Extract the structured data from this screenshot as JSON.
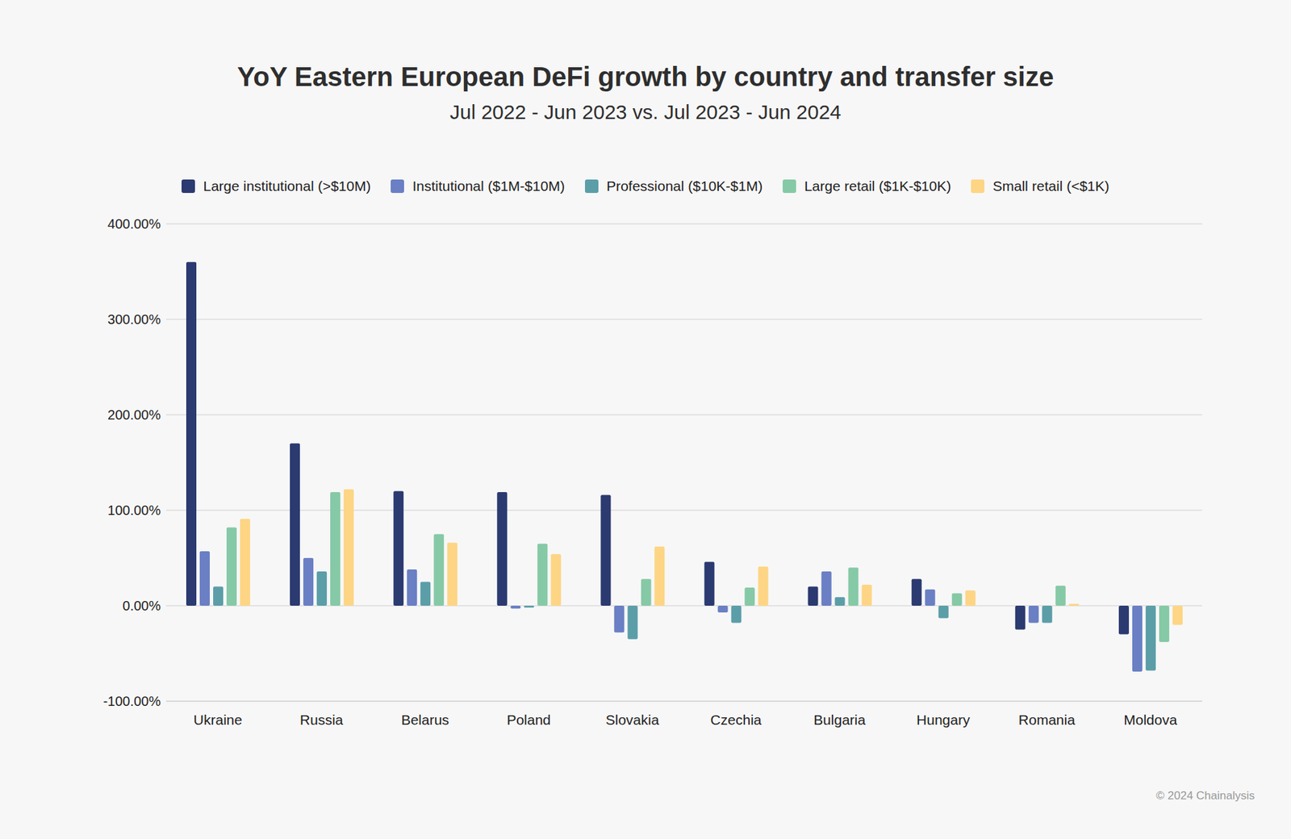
{
  "chart_data": {
    "type": "bar",
    "title": "YoY Eastern European DeFi growth by country and transfer size",
    "subtitle": "Jul 2022 - Jun 2023 vs. Jul 2023 - Jun 2024",
    "source": "© 2024 Chainalysis",
    "categories": [
      "Ukraine",
      "Russia",
      "Belarus",
      "Poland",
      "Slovakia",
      "Czechia",
      "Bulgaria",
      "Hungary",
      "Romania",
      "Moldova"
    ],
    "series": [
      {
        "name": "Large institutional (>$10M)",
        "color": "#2b3a70",
        "values": [
          360,
          170,
          120,
          119,
          116,
          46,
          20,
          28,
          -25,
          -30
        ]
      },
      {
        "name": "Institutional ($1M-$10M)",
        "color": "#6a7fc4",
        "values": [
          57,
          50,
          38,
          -3,
          -28,
          -7,
          36,
          17,
          -18,
          -69
        ]
      },
      {
        "name": "Professional ($10K-$1M)",
        "color": "#5b9ea8",
        "values": [
          20,
          36,
          25,
          -2,
          -35,
          -18,
          9,
          -13,
          -18,
          -68
        ]
      },
      {
        "name": "Large retail ($1K-$10K)",
        "color": "#86c9a6",
        "values": [
          82,
          119,
          75,
          65,
          28,
          19,
          40,
          13,
          21,
          -38
        ]
      },
      {
        "name": "Small retail (<$1K)",
        "color": "#fdd584",
        "values": [
          91,
          122,
          66,
          54,
          62,
          41,
          22,
          16,
          2,
          -20
        ]
      }
    ],
    "ylim": [
      -100,
      400
    ],
    "yticks": [
      {
        "value": -100,
        "label": "-100.00%"
      },
      {
        "value": 0,
        "label": "0.00%"
      },
      {
        "value": 100,
        "label": "100.00%"
      },
      {
        "value": 200,
        "label": "200.00%"
      },
      {
        "value": 300,
        "label": "300.00%"
      },
      {
        "value": 400,
        "label": "400.00%"
      }
    ],
    "grid": true,
    "legend": "top"
  }
}
